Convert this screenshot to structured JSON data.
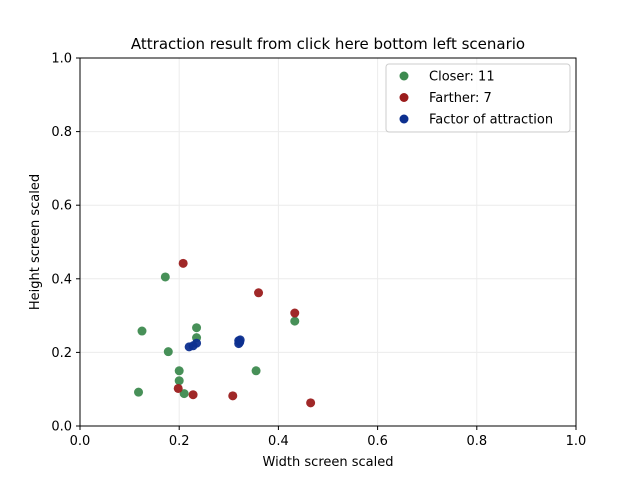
{
  "chart_data": {
    "type": "scatter",
    "title": "Attraction result from click here bottom left scenario",
    "xlabel": "Width screen scaled",
    "ylabel": "Height screen scaled",
    "xlim": [
      0.0,
      1.0
    ],
    "ylim": [
      0.0,
      1.0
    ],
    "xticks": [
      "0.0",
      "0.2",
      "0.4",
      "0.6",
      "0.8",
      "1.0"
    ],
    "yticks": [
      "0.0",
      "0.2",
      "0.4",
      "0.6",
      "0.8",
      "1.0"
    ],
    "grid": true,
    "legend_position": "top-right",
    "series": [
      {
        "name": "Closer: 11",
        "color": "#3d8a4f",
        "points": [
          [
            0.172,
            0.405
          ],
          [
            0.125,
            0.258
          ],
          [
            0.178,
            0.202
          ],
          [
            0.235,
            0.267
          ],
          [
            0.235,
            0.24
          ],
          [
            0.2,
            0.15
          ],
          [
            0.2,
            0.123
          ],
          [
            0.21,
            0.088
          ],
          [
            0.118,
            0.092
          ],
          [
            0.355,
            0.15
          ],
          [
            0.433,
            0.285
          ]
        ]
      },
      {
        "name": "Farther: 7",
        "color": "#9b1c1c",
        "points": [
          [
            0.208,
            0.442
          ],
          [
            0.36,
            0.362
          ],
          [
            0.433,
            0.307
          ],
          [
            0.198,
            0.102
          ],
          [
            0.228,
            0.085
          ],
          [
            0.308,
            0.082
          ],
          [
            0.465,
            0.063
          ]
        ]
      },
      {
        "name": "Factor of attraction",
        "color": "#0d2f8f",
        "points": [
          [
            0.22,
            0.215
          ],
          [
            0.228,
            0.218
          ],
          [
            0.235,
            0.225
          ],
          [
            0.32,
            0.232
          ],
          [
            0.322,
            0.228
          ],
          [
            0.32,
            0.224
          ],
          [
            0.323,
            0.234
          ]
        ]
      }
    ]
  }
}
